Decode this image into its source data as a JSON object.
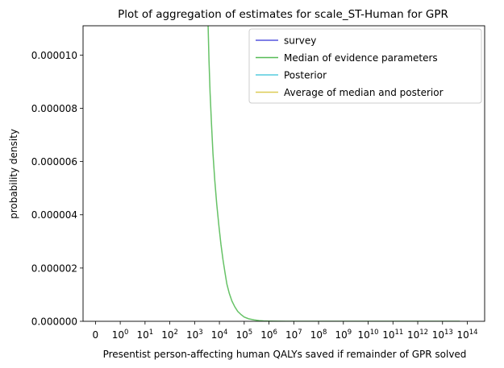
{
  "chart_data": {
    "type": "line",
    "title": "Plot of aggregation of estimates for scale_ST-Human for GPR",
    "xlabel": "Presentist person-affecting human QALYs saved if remainder of GPR solved",
    "ylabel": "probability density",
    "x_scale": "symlog",
    "y_scale": "linear",
    "xlim": [
      -0.5,
      500000000000000.0
    ],
    "ylim": [
      0,
      1.11e-05
    ],
    "x_ticks": [
      {
        "value": 0,
        "label": "0"
      },
      {
        "value": 1,
        "base": "10",
        "exp": "0"
      },
      {
        "value": 10,
        "base": "10",
        "exp": "1"
      },
      {
        "value": 100,
        "base": "10",
        "exp": "2"
      },
      {
        "value": 1000,
        "base": "10",
        "exp": "3"
      },
      {
        "value": 10000,
        "base": "10",
        "exp": "4"
      },
      {
        "value": 100000,
        "base": "10",
        "exp": "5"
      },
      {
        "value": 1000000,
        "base": "10",
        "exp": "6"
      },
      {
        "value": 10000000,
        "base": "10",
        "exp": "7"
      },
      {
        "value": 100000000,
        "base": "10",
        "exp": "8"
      },
      {
        "value": 1000000000,
        "base": "10",
        "exp": "9"
      },
      {
        "value": 10000000000,
        "base": "10",
        "exp": "10"
      },
      {
        "value": 100000000000,
        "base": "10",
        "exp": "11"
      },
      {
        "value": 1000000000000,
        "base": "10",
        "exp": "12"
      },
      {
        "value": 10000000000000,
        "base": "10",
        "exp": "13"
      },
      {
        "value": 100000000000000,
        "base": "10",
        "exp": "14"
      }
    ],
    "y_ticks": [
      {
        "value": 0.0,
        "label": "0.000000"
      },
      {
        "value": 2e-06,
        "label": "0.000002"
      },
      {
        "value": 4e-06,
        "label": "0.000004"
      },
      {
        "value": 6e-06,
        "label": "0.000006"
      },
      {
        "value": 8e-06,
        "label": "0.000008"
      },
      {
        "value": 1e-05,
        "label": "0.000010"
      }
    ],
    "grid": false,
    "legend_position": "top-right",
    "series": [
      {
        "name": "survey",
        "color": "#5555dd",
        "x": [],
        "y": []
      },
      {
        "name": "Median of evidence parameters",
        "color": "#55bb55",
        "x": [
          3500,
          3800,
          4200,
          4800,
          5500,
          6500,
          7800,
          9500,
          11500,
          14000,
          17000,
          20000,
          25000,
          32000,
          42000,
          55000,
          75000,
          100000,
          150000,
          250000,
          400000,
          600000,
          1000000,
          2000000,
          5000000,
          20000000,
          100000000,
          1000000000,
          10000000000,
          100000000000,
          1000000000000,
          10000000000000,
          50000000000000
        ],
        "y": [
          1.11e-05,
          9.8e-06,
          8.6e-06,
          7.4e-06,
          6.3e-06,
          5.3e-06,
          4.4e-06,
          3.6e-06,
          2.9e-06,
          2.3e-06,
          1.8e-06,
          1.4e-06,
          1.05e-06,
          7.6e-07,
          5.4e-07,
          3.7e-07,
          2.5e-07,
          1.6e-07,
          9.5e-08,
          5.2e-08,
          2.8e-08,
          1.5e-08,
          7.5e-09,
          3e-09,
          1e-09,
          3e-10,
          1e-10,
          3e-11,
          1e-11,
          3e-12,
          1e-12,
          4e-13,
          1e-13
        ]
      },
      {
        "name": "Posterior",
        "color": "#55ccdd",
        "x": [],
        "y": []
      },
      {
        "name": "Average of median and posterior",
        "color": "#ddcc55",
        "x": [],
        "y": []
      }
    ]
  }
}
